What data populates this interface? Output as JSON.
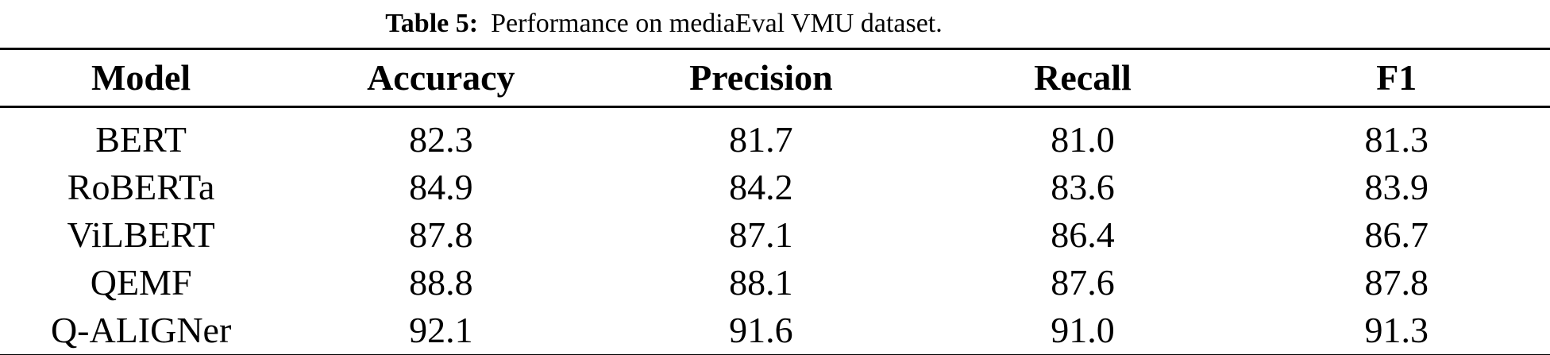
{
  "caption": {
    "label": "Table 5:",
    "text": "Performance on mediaEval VMU dataset."
  },
  "table": {
    "columns": [
      "Model",
      "Accuracy",
      "Precision",
      "Recall",
      "F1"
    ],
    "rows": [
      {
        "model": "BERT",
        "values": [
          "82.3",
          "81.7",
          "81.0",
          "81.3"
        ]
      },
      {
        "model": "RoBERTa",
        "values": [
          "84.9",
          "84.2",
          "83.6",
          "83.9"
        ]
      },
      {
        "model": "ViLBERT",
        "values": [
          "87.8",
          "87.1",
          "86.4",
          "86.7"
        ]
      },
      {
        "model": "QEMF",
        "values": [
          "88.8",
          "88.1",
          "87.6",
          "87.8"
        ]
      },
      {
        "model": "Q-ALIGNer",
        "values": [
          "92.1",
          "91.6",
          "91.0",
          "91.3"
        ]
      }
    ]
  },
  "colors": {
    "text": "#000000",
    "background": "#ffffff",
    "rule": "#000000"
  },
  "chart_data": {
    "type": "table",
    "title": "Table 5: Performance on mediaEval VMU dataset.",
    "columns": [
      "Model",
      "Accuracy",
      "Precision",
      "Recall",
      "F1"
    ],
    "rows": [
      [
        "BERT",
        82.3,
        81.7,
        81.0,
        81.3
      ],
      [
        "RoBERTa",
        84.9,
        84.2,
        83.6,
        83.9
      ],
      [
        "ViLBERT",
        87.8,
        87.1,
        86.4,
        86.7
      ],
      [
        "QEMF",
        88.8,
        88.1,
        87.6,
        87.8
      ],
      [
        "Q-ALIGNer",
        92.1,
        91.6,
        91.0,
        91.3
      ]
    ]
  }
}
